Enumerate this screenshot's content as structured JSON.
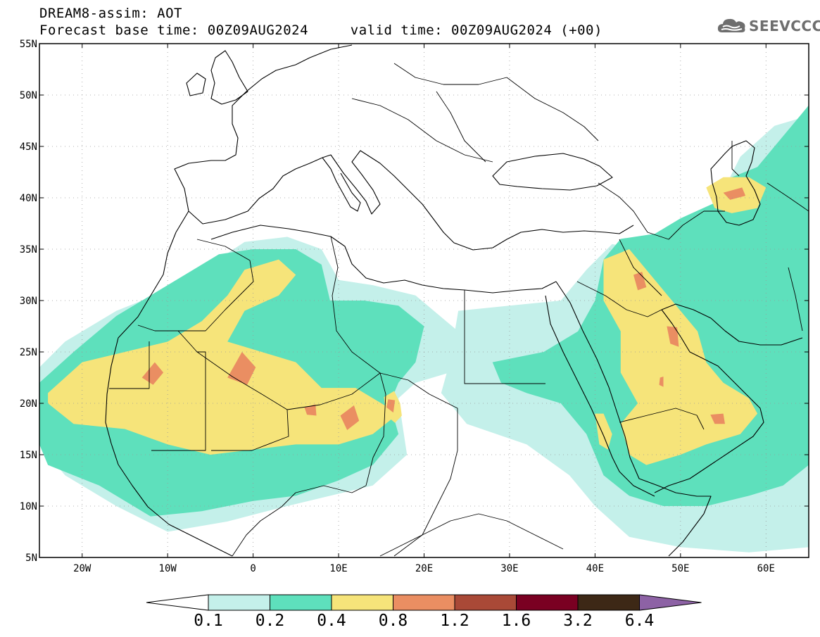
{
  "header": {
    "title": "DREAM8-assim: AOT",
    "base_time_label": "Forecast base time: 00Z09AUG2024",
    "valid_time_label": "valid time: 00Z09AUG2024 (+00)"
  },
  "logo": {
    "text": "SEEVCCC",
    "icon": "cloud-icon"
  },
  "axes": {
    "lat_labels": [
      "55N",
      "50N",
      "45N",
      "40N",
      "35N",
      "30N",
      "25N",
      "20N",
      "15N",
      "10N",
      "5N"
    ],
    "lon_labels": [
      "20W",
      "10W",
      "0",
      "10E",
      "20E",
      "30E",
      "40E",
      "50E",
      "60E"
    ],
    "lon_range": [
      -25,
      65
    ],
    "lat_range": [
      5,
      55
    ]
  },
  "colorbar": {
    "labels": [
      "0.1",
      "0.2",
      "0.4",
      "0.8",
      "1.2",
      "1.6",
      "3.2",
      "6.4"
    ],
    "colors": [
      "#c4f0ea",
      "#5ee0bc",
      "#f6e47a",
      "#ea8e62",
      "#a94937",
      "#7a0022",
      "#3d2816",
      "#8d62a5"
    ]
  },
  "field": {
    "variable": "Aerosol Optical Thickness",
    "regions": [
      {
        "level": 1,
        "name": "sahara-west-light",
        "points": [
          [
            -25,
            23.5
          ],
          [
            -22,
            26
          ],
          [
            -16,
            29
          ],
          [
            -10,
            31
          ],
          [
            -5,
            33.5
          ],
          [
            -1,
            35.7
          ],
          [
            4,
            36.2
          ],
          [
            8,
            35
          ],
          [
            10,
            32
          ],
          [
            14,
            31.5
          ],
          [
            19,
            30.5
          ],
          [
            24,
            27
          ],
          [
            23,
            23
          ],
          [
            19,
            22
          ],
          [
            17,
            20.5
          ],
          [
            18,
            15
          ],
          [
            14,
            12
          ],
          [
            9,
            11
          ],
          [
            3,
            9.8
          ],
          [
            -3,
            8.5
          ],
          [
            -10,
            7.5
          ],
          [
            -16,
            10
          ],
          [
            -22,
            13
          ],
          [
            -25,
            16
          ]
        ]
      },
      {
        "level": 1,
        "name": "egypt-arabia-light",
        "points": [
          [
            24,
            29
          ],
          [
            30,
            29.5
          ],
          [
            36,
            30
          ],
          [
            39,
            33
          ],
          [
            42,
            35.5
          ],
          [
            45,
            35
          ],
          [
            50,
            36
          ],
          [
            54,
            39
          ],
          [
            57,
            44
          ],
          [
            61,
            47
          ],
          [
            65,
            48
          ],
          [
            65,
            6
          ],
          [
            58,
            5.5
          ],
          [
            50,
            6
          ],
          [
            44,
            7
          ],
          [
            40,
            10
          ],
          [
            37,
            13
          ],
          [
            32,
            16
          ],
          [
            25,
            18
          ],
          [
            22,
            21
          ],
          [
            23,
            24
          ]
        ]
      },
      {
        "level": 2,
        "name": "sahara-moderate",
        "points": [
          [
            -25,
            22
          ],
          [
            -21,
            25
          ],
          [
            -16,
            28.5
          ],
          [
            -12,
            30.5
          ],
          [
            -8,
            32.5
          ],
          [
            -4,
            34.5
          ],
          [
            0,
            35
          ],
          [
            5,
            35
          ],
          [
            8,
            33.5
          ],
          [
            9,
            30
          ],
          [
            13,
            30
          ],
          [
            17,
            29.5
          ],
          [
            20,
            27.5
          ],
          [
            19,
            24
          ],
          [
            17,
            22
          ],
          [
            16,
            20
          ],
          [
            17,
            17
          ],
          [
            14,
            14
          ],
          [
            10,
            12.5
          ],
          [
            5,
            11
          ],
          [
            0,
            10.5
          ],
          [
            -6,
            9.5
          ],
          [
            -12,
            9
          ],
          [
            -18,
            12
          ],
          [
            -24,
            14
          ],
          [
            -25,
            16
          ]
        ]
      },
      {
        "level": 2,
        "name": "arabia-moderate",
        "points": [
          [
            28,
            24
          ],
          [
            34,
            25
          ],
          [
            38,
            27
          ],
          [
            40,
            30
          ],
          [
            41,
            34
          ],
          [
            43,
            36
          ],
          [
            47,
            36.5
          ],
          [
            50,
            38
          ],
          [
            54,
            39.5
          ],
          [
            56,
            42
          ],
          [
            59,
            43
          ],
          [
            61,
            45
          ],
          [
            64,
            48
          ],
          [
            65,
            49
          ],
          [
            65,
            14
          ],
          [
            62,
            12
          ],
          [
            58,
            11
          ],
          [
            53,
            10
          ],
          [
            48,
            10
          ],
          [
            44,
            11
          ],
          [
            41,
            13
          ],
          [
            39,
            17
          ],
          [
            36,
            20
          ],
          [
            32,
            21
          ],
          [
            29,
            22
          ]
        ]
      },
      {
        "level": 3,
        "name": "sahara-yellow",
        "points": [
          [
            -24,
            21
          ],
          [
            -20,
            24
          ],
          [
            -15,
            25
          ],
          [
            -10,
            26
          ],
          [
            -6,
            28
          ],
          [
            -3,
            30.5
          ],
          [
            -1,
            33
          ],
          [
            3,
            34
          ],
          [
            5,
            32.5
          ],
          [
            3,
            30.5
          ],
          [
            -1,
            29
          ],
          [
            -3,
            26
          ],
          [
            1,
            25
          ],
          [
            5,
            24
          ],
          [
            8,
            21.5
          ],
          [
            12,
            21.5
          ],
          [
            15,
            20
          ],
          [
            17,
            19
          ],
          [
            14,
            17
          ],
          [
            10,
            16
          ],
          [
            5,
            16
          ],
          [
            0,
            15.5
          ],
          [
            -5,
            15
          ],
          [
            -10,
            16
          ],
          [
            -15,
            17.5
          ],
          [
            -21,
            18
          ],
          [
            -24,
            20
          ]
        ]
      },
      {
        "level": 3,
        "name": "lake-chad-yellow",
        "points": [
          [
            15.3,
            20.6
          ],
          [
            16.5,
            21.2
          ],
          [
            17.2,
            20
          ],
          [
            17.4,
            18.8
          ],
          [
            16.6,
            18.1
          ],
          [
            15.6,
            18.8
          ]
        ]
      },
      {
        "level": 3,
        "name": "arabia-yellow",
        "points": [
          [
            41,
            34
          ],
          [
            44,
            35
          ],
          [
            46,
            33
          ],
          [
            48,
            31
          ],
          [
            50,
            29
          ],
          [
            52,
            27
          ],
          [
            53,
            24
          ],
          [
            55,
            22
          ],
          [
            58,
            20.5
          ],
          [
            59,
            19
          ],
          [
            57,
            17
          ],
          [
            53,
            16
          ],
          [
            50,
            15
          ],
          [
            46,
            14
          ],
          [
            44,
            15
          ],
          [
            43,
            18
          ],
          [
            45,
            20
          ],
          [
            43,
            23
          ],
          [
            43,
            27
          ],
          [
            41,
            30
          ]
        ]
      },
      {
        "level": 3,
        "name": "red-sea-yellow",
        "points": [
          [
            40,
            19
          ],
          [
            41,
            19
          ],
          [
            42,
            17
          ],
          [
            41.5,
            15.5
          ],
          [
            40.5,
            16
          ]
        ]
      },
      {
        "level": 3,
        "name": "caspian-yellow",
        "points": [
          [
            53,
            41
          ],
          [
            55,
            42
          ],
          [
            58,
            42
          ],
          [
            60,
            41
          ],
          [
            59,
            39
          ],
          [
            56,
            38.5
          ],
          [
            54,
            39
          ]
        ]
      },
      {
        "level": 4,
        "name": "mauritania-orange",
        "points": [
          [
            -13,
            22.5
          ],
          [
            -11.5,
            24
          ],
          [
            -10.5,
            23
          ],
          [
            -11.7,
            21.8
          ]
        ]
      },
      {
        "level": 4,
        "name": "mali-orange",
        "points": [
          [
            -3,
            22.5
          ],
          [
            -1.3,
            25
          ],
          [
            0.3,
            23.5
          ],
          [
            -0.7,
            21.8
          ]
        ]
      },
      {
        "level": 4,
        "name": "niger-orange-1",
        "points": [
          [
            6,
            19.6
          ],
          [
            7.3,
            19.9
          ],
          [
            7.4,
            18.8
          ],
          [
            6.3,
            18.9
          ]
        ]
      },
      {
        "level": 4,
        "name": "niger-orange-2",
        "points": [
          [
            10.2,
            18.8
          ],
          [
            11.8,
            19.8
          ],
          [
            12.4,
            18.3
          ],
          [
            11,
            17.4
          ]
        ]
      },
      {
        "level": 4,
        "name": "chad-orange",
        "points": [
          [
            15.8,
            20.4
          ],
          [
            16.6,
            20.3
          ],
          [
            16.4,
            19.1
          ],
          [
            15.6,
            19.6
          ]
        ]
      },
      {
        "level": 4,
        "name": "iraq-orange",
        "points": [
          [
            44.5,
            32.5
          ],
          [
            45.5,
            32.8
          ],
          [
            46,
            31.3
          ],
          [
            45,
            31
          ]
        ]
      },
      {
        "level": 4,
        "name": "kuwait-orange",
        "points": [
          [
            48.4,
            27.5
          ],
          [
            49.6,
            27.4
          ],
          [
            49.8,
            25.5
          ],
          [
            48.8,
            25.8
          ]
        ]
      },
      {
        "level": 4,
        "name": "caspian-orange",
        "points": [
          [
            55,
            40.5
          ],
          [
            57.2,
            41
          ],
          [
            57.6,
            40.2
          ],
          [
            55.8,
            39.8
          ]
        ]
      },
      {
        "level": 4,
        "name": "oman-orange",
        "points": [
          [
            53.5,
            18.9
          ],
          [
            55,
            19
          ],
          [
            55.2,
            18
          ],
          [
            54,
            18
          ]
        ]
      },
      {
        "level": 4,
        "name": "riyadh-orange",
        "points": [
          [
            47.6,
            22.5
          ],
          [
            48,
            22.6
          ],
          [
            48,
            21.6
          ],
          [
            47.5,
            21.8
          ]
        ]
      }
    ]
  }
}
